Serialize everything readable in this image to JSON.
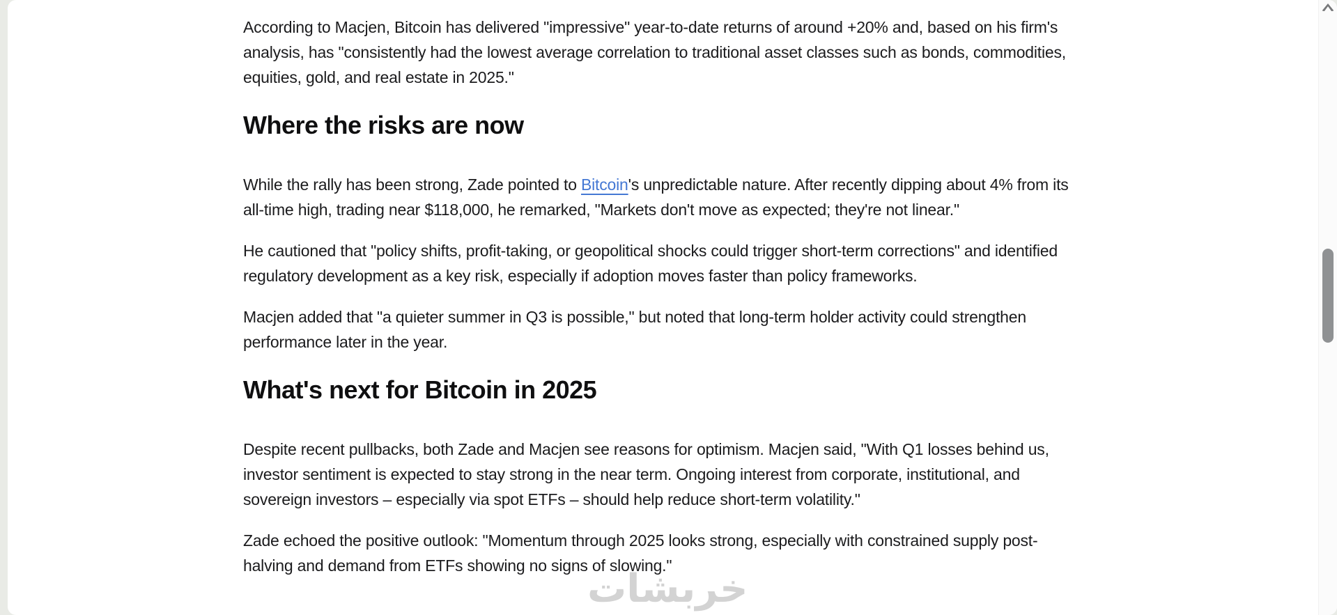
{
  "article": {
    "intro_paragraph": "According to Macjen, Bitcoin has delivered \"impressive\" year-to-date returns of around +20% and, based on his firm's analysis, has \"consistently had the lowest average correlation to traditional asset classes such as bonds, commodities, equities, gold, and real estate in 2025.\"",
    "risks_heading": "Where the risks are now",
    "risks_p1": {
      "pre": "While the rally has been strong, Zade pointed to ",
      "link": "Bitcoin",
      "post": "'s unpredictable nature. After recently dipping about 4% from its all-time high, trading near $118,000, he remarked, \"Markets don't move as expected; they're not linear.\""
    },
    "risks_p2": "He cautioned that \"policy shifts, profit-taking, or geopolitical shocks could trigger short-term corrections\" and identified regulatory development as a key risk, especially if adoption moves faster than policy frameworks.",
    "risks_p3": "Macjen added that \"a quieter summer in Q3 is possible,\" but noted that long-term holder activity could strengthen performance later in the year.",
    "outlook_heading": "What's next for Bitcoin in 2025",
    "outlook_p1": "Despite recent pullbacks, both Zade and Macjen see reasons for optimism. Macjen said, \"With Q1 losses behind us, investor sentiment is expected to stay strong in the near term. Ongoing interest from corporate, institutional, and sovereign investors – especially via spot ETFs – should help reduce short-term volatility.\"",
    "outlook_p2": "Zade echoed the positive outlook: \"Momentum through 2025 looks strong, especially with constrained supply post-halving and demand from ETFs showing no signs of slowing.\""
  },
  "watermark_text": "خربشات",
  "colors": {
    "link": "#4478d4",
    "body_text": "#1b1b1d",
    "desktop_background": "#e9ebe6",
    "page_surface": "#ffffff",
    "watermark": "#d3d3d3",
    "scrollbar_thumb": "#8f9193"
  }
}
